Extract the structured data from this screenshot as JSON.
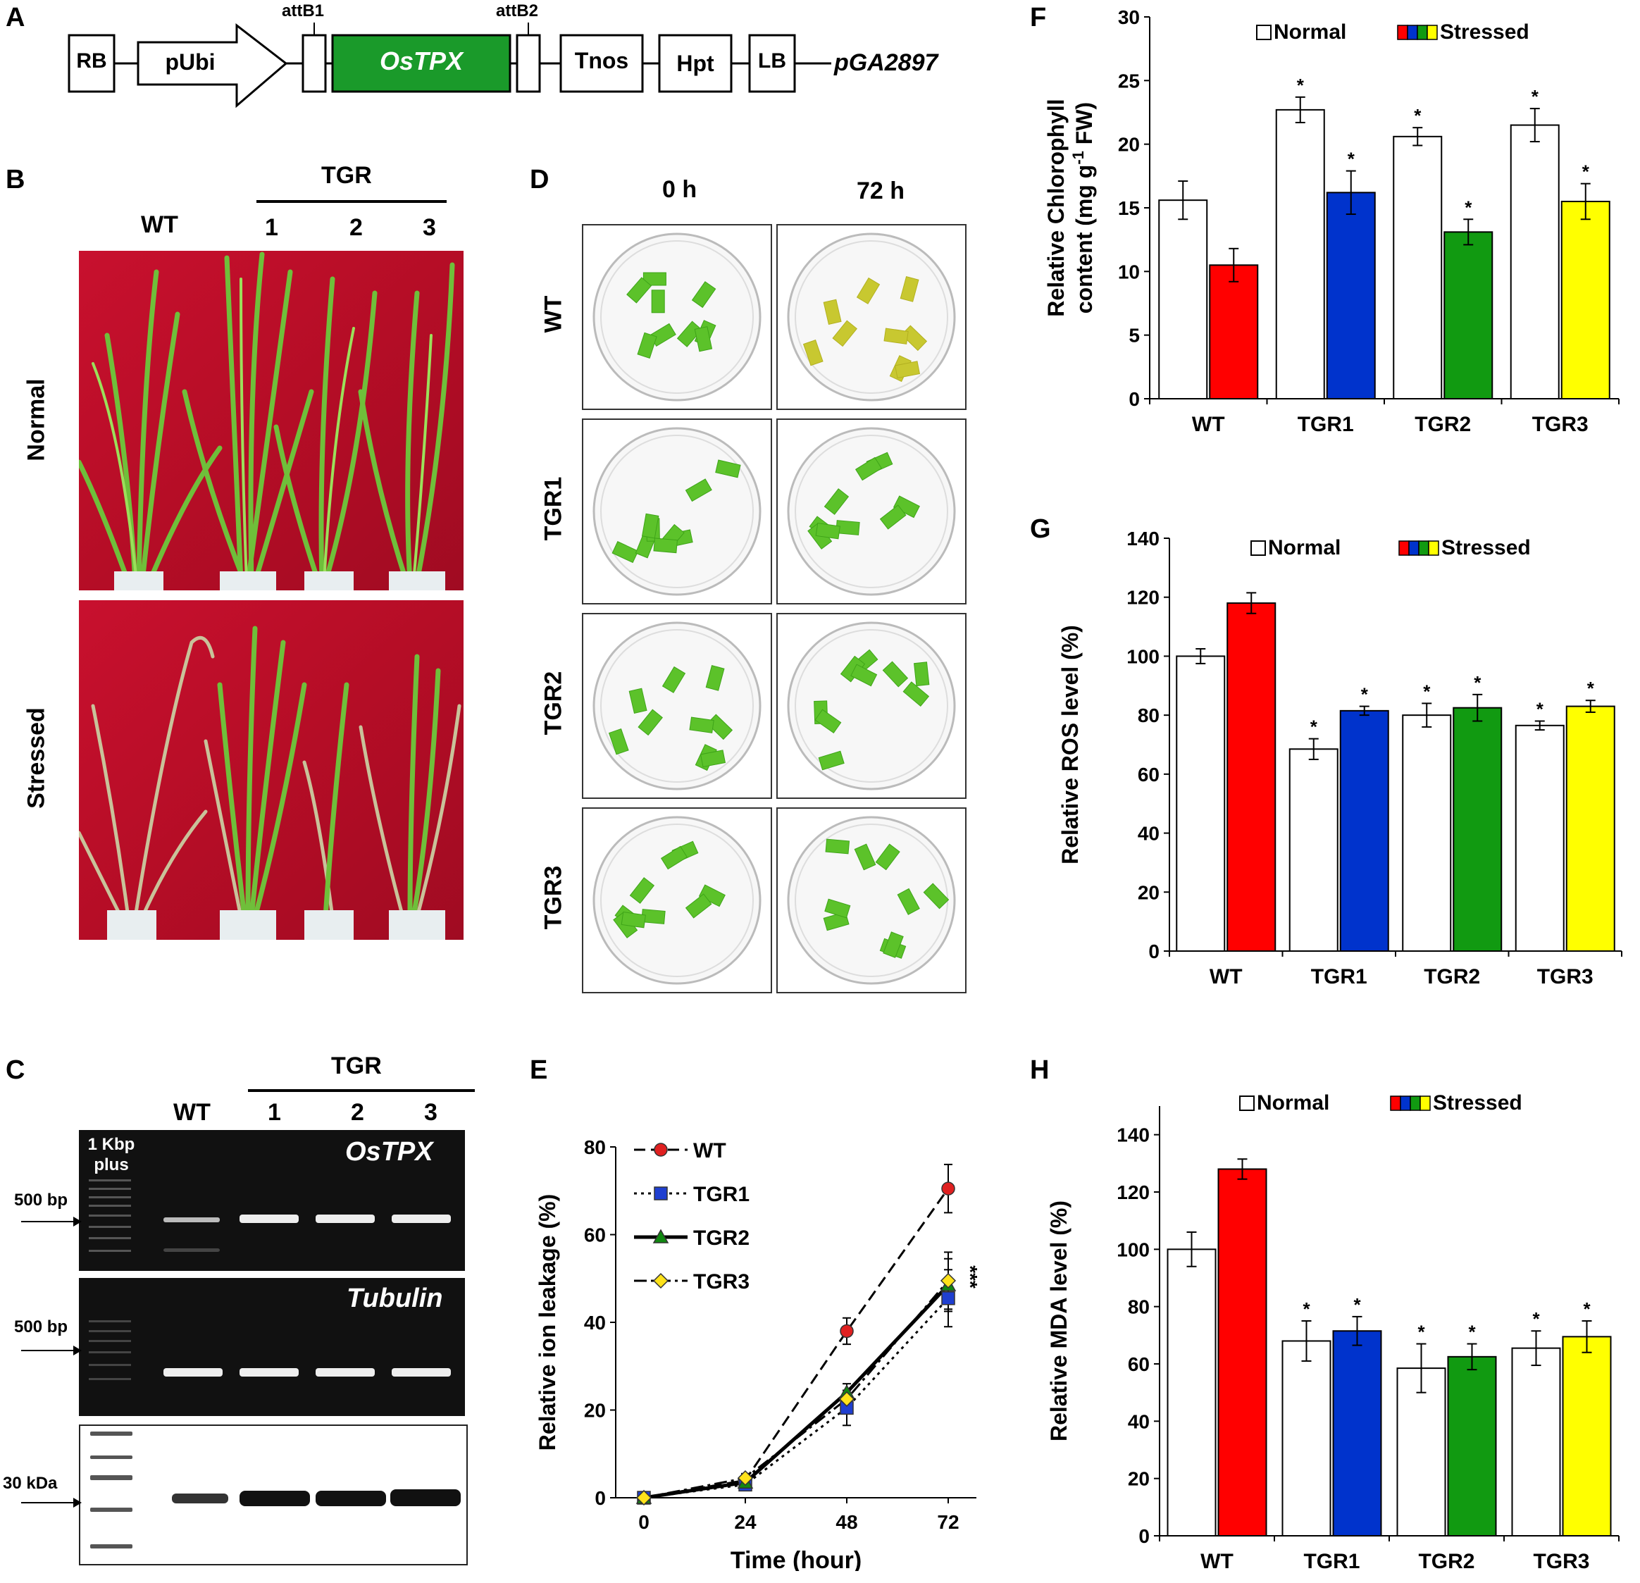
{
  "panel_labels": {
    "A": "A",
    "B": "B",
    "C": "C",
    "D": "D",
    "E": "E",
    "F": "F",
    "G": "G",
    "H": "H"
  },
  "construct": {
    "boxes": [
      "RB",
      "pUbi",
      "OsTPX",
      "Tnos",
      "Hpt",
      "LB"
    ],
    "att1": "attB1",
    "att2": "attB2",
    "vector": "pGA2897",
    "gene_color": "#1a9a2a"
  },
  "panelB": {
    "tgr": "TGR",
    "wt": "WT",
    "lines": [
      "1",
      "2",
      "3"
    ],
    "rows": [
      "Normal",
      "Stressed"
    ]
  },
  "panelC": {
    "tgr": "TGR",
    "wt": "WT",
    "lines": [
      "1",
      "2",
      "3"
    ],
    "marker": "1 Kbp plus",
    "gene1": "OsTPX",
    "gene2": "Tubulin",
    "bp1": "500 bp",
    "bp2": "500 bp",
    "kda": "30 kDa"
  },
  "panelD": {
    "cols": [
      "0 h",
      "72 h"
    ],
    "rows": [
      "WT",
      "TGR1",
      "TGR2",
      "TGR3"
    ]
  },
  "colors": {
    "WT": "#ff0000",
    "TGR1": "#0033cc",
    "TGR2": "#119a11",
    "TGR3": "#ffff00",
    "normal": "#ffffff"
  },
  "chart_data": [
    {
      "id": "E",
      "type": "line",
      "xlabel": "Time (hour)",
      "ylabel": "Relative ion leakage (%)",
      "x": [
        0,
        24,
        48,
        72
      ],
      "xticks": [
        "0",
        "24",
        "48",
        "72"
      ],
      "ylim": [
        0,
        80
      ],
      "yticks": [
        0,
        20,
        40,
        60,
        80
      ],
      "legend_position": "top-left",
      "significance": "***",
      "series": [
        {
          "name": "WT",
          "values": [
            0,
            4,
            38,
            70.5
          ],
          "errors": [
            0,
            1,
            3,
            5.5
          ],
          "marker": "circle",
          "dash": "dashed",
          "color": "#e02020"
        },
        {
          "name": "TGR1",
          "values": [
            0,
            3,
            20.5,
            45.5
          ],
          "errors": [
            0,
            1,
            4,
            6.5
          ],
          "marker": "square",
          "dash": "dotted",
          "color": "#1f3fd0"
        },
        {
          "name": "TGR2",
          "values": [
            0,
            3.5,
            24,
            48.5
          ],
          "errors": [
            0,
            1,
            2,
            6
          ],
          "marker": "triangle",
          "dash": "solid",
          "color": "#118811"
        },
        {
          "name": "TGR3",
          "values": [
            0,
            4.5,
            22.5,
            49.5
          ],
          "errors": [
            0,
            1,
            2,
            6.5
          ],
          "marker": "diamond",
          "dash": "dashdot",
          "color": "#ffe21a"
        }
      ]
    },
    {
      "id": "F",
      "type": "bar",
      "ylabel_line1": "Relative Chlorophyll",
      "ylabel_line2_pre": "content (mg g",
      "ylabel_sup": "-1",
      "ylabel_line2_post": " FW)",
      "categories": [
        "WT",
        "TGR1",
        "TGR2",
        "TGR3"
      ],
      "ylim": [
        0,
        30
      ],
      "yticks": [
        0,
        5,
        10,
        15,
        20,
        25,
        30
      ],
      "legend": {
        "normal": "Normal",
        "stressed": "Stressed"
      },
      "series": [
        {
          "name": "Normal",
          "values": [
            15.6,
            22.7,
            20.6,
            21.5
          ],
          "errors": [
            1.5,
            1.0,
            0.7,
            1.3
          ],
          "star": [
            false,
            true,
            true,
            true
          ]
        },
        {
          "name": "Stressed",
          "values": [
            10.5,
            16.2,
            13.1,
            15.5
          ],
          "errors": [
            1.3,
            1.7,
            1.0,
            1.4
          ],
          "star": [
            false,
            true,
            true,
            true
          ]
        }
      ]
    },
    {
      "id": "G",
      "type": "bar",
      "ylabel": "Relative ROS level (%)",
      "categories": [
        "WT",
        "TGR1",
        "TGR2",
        "TGR3"
      ],
      "ylim": [
        0,
        140
      ],
      "yticks": [
        0,
        20,
        40,
        60,
        80,
        100,
        120,
        140
      ],
      "legend": {
        "normal": "Normal",
        "stressed": "Stressed"
      },
      "series": [
        {
          "name": "Normal",
          "values": [
            100,
            68.5,
            80,
            76.5
          ],
          "errors": [
            2.5,
            3.5,
            4,
            1.5
          ],
          "star": [
            false,
            true,
            true,
            true
          ]
        },
        {
          "name": "Stressed",
          "values": [
            118,
            81.5,
            82.5,
            83
          ],
          "errors": [
            3.5,
            1.5,
            4.5,
            2
          ],
          "star": [
            false,
            true,
            true,
            true
          ]
        }
      ]
    },
    {
      "id": "H",
      "type": "bar",
      "ylabel": "Relative MDA level (%)",
      "categories": [
        "WT",
        "TGR1",
        "TGR2",
        "TGR3"
      ],
      "ylim": [
        0,
        150
      ],
      "yticks": [
        0,
        20,
        40,
        60,
        80,
        100,
        120,
        140
      ],
      "legend": {
        "normal": "Normal",
        "stressed": "Stressed"
      },
      "series": [
        {
          "name": "Normal",
          "values": [
            100,
            68,
            58.5,
            65.5
          ],
          "errors": [
            6,
            7,
            8.5,
            6
          ],
          "star": [
            false,
            true,
            true,
            true
          ]
        },
        {
          "name": "Stressed",
          "values": [
            128,
            71.5,
            62.5,
            69.5
          ],
          "errors": [
            3.5,
            5,
            4.5,
            5.5
          ],
          "star": [
            false,
            true,
            true,
            true
          ]
        }
      ]
    }
  ]
}
